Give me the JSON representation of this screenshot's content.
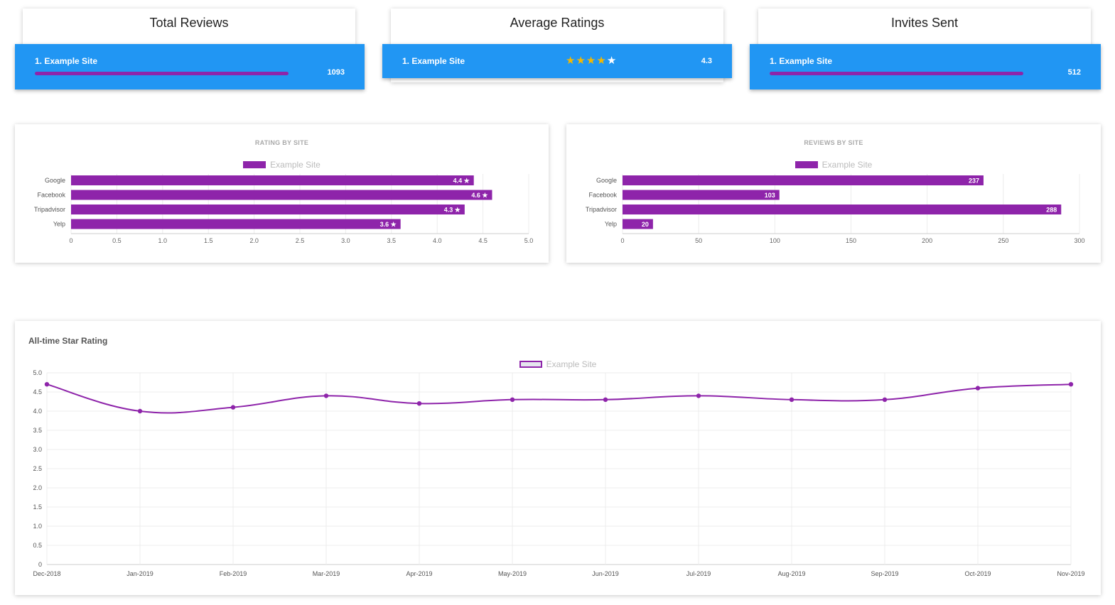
{
  "stats": {
    "total_reviews": {
      "title": "Total Reviews",
      "site": "1. Example Site",
      "value": "1093",
      "progress": 0.76
    },
    "average_ratings": {
      "title": "Average Ratings",
      "site": "1. Example Site",
      "stars": "★★★★★",
      "stars_filled": 4,
      "value": "4.3"
    },
    "invites_sent": {
      "title": "Invites Sent",
      "site": "1. Example Site",
      "value": "512",
      "progress": 0.76
    }
  },
  "colors": {
    "accent_blue": "#2196f3",
    "series_purple": "#8e24aa",
    "star_gold": "#f5b800"
  },
  "rating_chart": {
    "title": "RATING BY SITE",
    "legend": "Example Site"
  },
  "reviews_chart": {
    "title": "REVIEWS BY SITE",
    "legend": "Example Site"
  },
  "line_chart": {
    "title": "All-time Star Rating",
    "legend": "Example Site"
  },
  "chart_data": [
    {
      "type": "bar",
      "orientation": "horizontal",
      "title": "RATING BY SITE",
      "categories": [
        "Google",
        "Facebook",
        "Tripadvisor",
        "Yelp"
      ],
      "series": [
        {
          "name": "Example Site",
          "values": [
            4.4,
            4.6,
            4.3,
            3.6
          ]
        }
      ],
      "data_labels": [
        "4.4 ★",
        "4.6 ★",
        "4.3 ★",
        "3.6 ★"
      ],
      "xlim": [
        0,
        5
      ],
      "xticks": [
        "0",
        "0.5",
        "1.0",
        "1.5",
        "2.0",
        "2.5",
        "3.0",
        "3.5",
        "4.0",
        "4.5",
        "5.0"
      ],
      "grid": true,
      "legend_position": "top"
    },
    {
      "type": "bar",
      "orientation": "horizontal",
      "title": "REVIEWS BY SITE",
      "categories": [
        "Google",
        "Facebook",
        "Tripadvisor",
        "Yelp"
      ],
      "series": [
        {
          "name": "Example Site",
          "values": [
            237,
            103,
            288,
            20
          ]
        }
      ],
      "data_labels": [
        "237",
        "103",
        "288",
        "20"
      ],
      "xlim": [
        0,
        300
      ],
      "xticks": [
        "0",
        "50",
        "100",
        "150",
        "200",
        "250",
        "300"
      ],
      "grid": true,
      "legend_position": "top"
    },
    {
      "type": "line",
      "title": "All-time Star Rating",
      "x": [
        "Dec-2018",
        "Jan-2019",
        "Feb-2019",
        "Mar-2019",
        "Apr-2019",
        "May-2019",
        "Jun-2019",
        "Jul-2019",
        "Aug-2019",
        "Sep-2019",
        "Oct-2019",
        "Nov-2019"
      ],
      "series": [
        {
          "name": "Example Site",
          "values": [
            4.7,
            4.0,
            4.1,
            4.4,
            4.2,
            4.3,
            4.3,
            4.4,
            4.3,
            4.3,
            4.6,
            4.7
          ]
        }
      ],
      "ylim": [
        0,
        5
      ],
      "yticks": [
        "0",
        "0.5",
        "1.0",
        "1.5",
        "2.0",
        "2.5",
        "3.0",
        "3.5",
        "4.0",
        "4.5",
        "5.0"
      ],
      "grid": true,
      "smooth": true,
      "legend_position": "top"
    }
  ]
}
